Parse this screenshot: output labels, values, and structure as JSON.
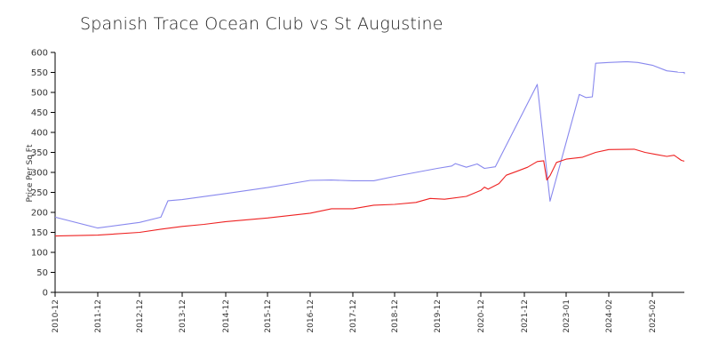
{
  "chart_data": {
    "type": "line",
    "title": "Spanish Trace Ocean Club vs St Augustine",
    "xlabel": "",
    "ylabel": "Price Per Sq Ft",
    "ylim": [
      0,
      600
    ],
    "yticks": [
      0,
      50,
      100,
      150,
      200,
      250,
      300,
      350,
      400,
      450,
      500,
      550,
      600
    ],
    "xticks": [
      "2010-12",
      "2011-12",
      "2012-12",
      "2013-12",
      "2014-12",
      "2015-12",
      "2016-12",
      "2017-12",
      "2018-12",
      "2019-12",
      "2020-12",
      "2021-12",
      "2023-01",
      "2024-02",
      "2025-02"
    ],
    "grid": false,
    "legend": "none",
    "series": [
      {
        "color": "#8888ee",
        "points": [
          [
            "2010-12",
            188
          ],
          [
            "2011-12",
            161
          ],
          [
            "2012-12",
            175
          ],
          [
            "2013-06",
            188
          ],
          [
            "2013-08",
            229
          ],
          [
            "2013-12",
            232
          ],
          [
            "2014-12",
            247
          ],
          [
            "2015-12",
            262
          ],
          [
            "2016-12",
            280
          ],
          [
            "2017-06",
            281
          ],
          [
            "2017-12",
            279
          ],
          [
            "2018-06",
            279
          ],
          [
            "2018-12",
            290
          ],
          [
            "2019-12",
            310
          ],
          [
            "2020-04",
            316
          ],
          [
            "2020-05",
            322
          ],
          [
            "2020-08",
            313
          ],
          [
            "2020-11",
            321
          ],
          [
            "2021-01",
            310
          ],
          [
            "2021-04",
            314
          ],
          [
            "2022-04",
            520
          ],
          [
            "2022-08",
            228
          ],
          [
            "2023-05",
            495
          ],
          [
            "2023-07",
            487
          ],
          [
            "2023-09",
            489
          ],
          [
            "2023-10",
            573
          ],
          [
            "2024-02",
            575
          ],
          [
            "2024-07",
            577
          ],
          [
            "2024-10",
            575
          ],
          [
            "2025-02",
            568
          ],
          [
            "2025-06",
            554
          ],
          [
            "2025-09",
            551
          ],
          [
            "2025-11",
            550
          ],
          [
            "2026-01",
            546
          ]
        ]
      },
      {
        "color": "#ee2222",
        "points": [
          [
            "2010-12",
            141
          ],
          [
            "2011-12",
            143
          ],
          [
            "2012-12",
            150
          ],
          [
            "2013-06",
            158
          ],
          [
            "2013-12",
            165
          ],
          [
            "2014-06",
            170
          ],
          [
            "2014-12",
            177
          ],
          [
            "2015-12",
            186
          ],
          [
            "2016-12",
            198
          ],
          [
            "2017-06",
            209
          ],
          [
            "2017-12",
            209
          ],
          [
            "2018-06",
            218
          ],
          [
            "2018-12",
            220
          ],
          [
            "2019-06",
            225
          ],
          [
            "2019-10",
            235
          ],
          [
            "2020-02",
            233
          ],
          [
            "2020-08",
            240
          ],
          [
            "2020-12",
            255
          ],
          [
            "2021-01",
            263
          ],
          [
            "2021-02",
            258
          ],
          [
            "2021-05",
            272
          ],
          [
            "2021-07",
            293
          ],
          [
            "2021-10",
            303
          ],
          [
            "2022-01",
            313
          ],
          [
            "2022-04",
            327
          ],
          [
            "2022-06",
            329
          ],
          [
            "2022-07",
            281
          ],
          [
            "2022-08",
            292
          ],
          [
            "2022-10",
            325
          ],
          [
            "2023-01",
            333
          ],
          [
            "2023-06",
            338
          ],
          [
            "2023-10",
            350
          ],
          [
            "2024-02",
            357
          ],
          [
            "2024-09",
            358
          ],
          [
            "2024-12",
            350
          ],
          [
            "2025-03",
            345
          ],
          [
            "2025-06",
            340
          ],
          [
            "2025-08",
            343
          ],
          [
            "2025-10",
            330
          ],
          [
            "2026-01",
            328
          ]
        ]
      }
    ]
  }
}
